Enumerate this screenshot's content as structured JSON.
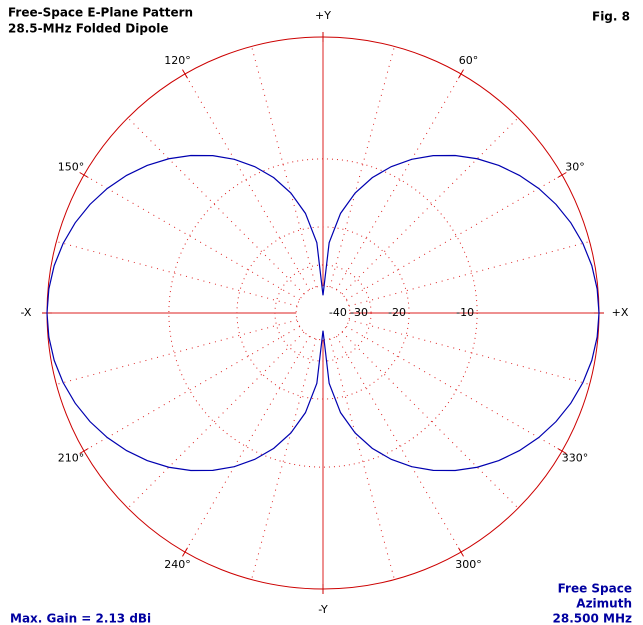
{
  "chart_data": {
    "type": "polar",
    "title": "Free-Space E-Plane Pattern",
    "subtitle": "28.5-MHz Folded Dipole",
    "figure_label": "Fig. 8",
    "footer_right": [
      "Free Space",
      "Azimuth",
      "28.500 MHz"
    ],
    "max_gain": {
      "value": 2.13,
      "label": "Max. Gain = 2.13 dBi"
    },
    "scale": "arrl-log",
    "rticks": [
      -10,
      -20,
      -30,
      -40
    ],
    "angle_ticks": [
      {
        "value": 0,
        "label": "+X"
      },
      {
        "value": 30,
        "label": "30°"
      },
      {
        "value": 60,
        "label": "60°"
      },
      {
        "value": 90,
        "label": "+Y"
      },
      {
        "value": 120,
        "label": "120°"
      },
      {
        "value": 150,
        "label": "150°"
      },
      {
        "value": 180,
        "label": "-X"
      },
      {
        "value": 210,
        "label": "210°"
      },
      {
        "value": 240,
        "label": "240°"
      },
      {
        "value": 270,
        "label": "-Y"
      },
      {
        "value": 300,
        "label": "300°"
      },
      {
        "value": 330,
        "label": "330°"
      }
    ],
    "ring_color": "#cc0000",
    "grid_color": "#dd2222",
    "x": [
      0,
      5,
      10,
      15,
      20,
      25,
      30,
      35,
      40,
      45,
      50,
      55,
      60,
      65,
      70,
      75,
      80,
      85,
      90,
      95,
      100,
      105,
      110,
      115,
      120,
      125,
      130,
      135,
      140,
      145,
      150,
      155,
      160,
      165,
      170,
      175,
      180,
      185,
      190,
      195,
      200,
      205,
      210,
      215,
      220,
      225,
      230,
      235,
      240,
      245,
      250,
      255,
      260,
      265,
      270,
      275,
      280,
      285,
      290,
      295,
      300,
      305,
      310,
      315,
      320,
      325,
      330,
      335,
      340,
      345,
      350,
      355
    ],
    "series": [
      {
        "color": "#0000b0",
        "values": [
          2.13,
          2.08,
          1.94,
          1.69,
          1.35,
          0.91,
          0.37,
          -0.28,
          -1.03,
          -1.91,
          -2.92,
          -4.09,
          -5.45,
          -7.07,
          -9.03,
          -11.58,
          -15.09,
          -21.26,
          -45,
          -21.26,
          -15.09,
          -11.58,
          -9.03,
          -7.07,
          -5.45,
          -4.09,
          -2.92,
          -1.91,
          -1.03,
          -0.28,
          0.37,
          0.91,
          1.35,
          1.69,
          1.94,
          2.08,
          2.13,
          2.08,
          1.94,
          1.69,
          1.35,
          0.91,
          0.37,
          -0.28,
          -1.03,
          -1.91,
          -2.92,
          -4.09,
          -5.45,
          -7.07,
          -9.03,
          -11.58,
          -15.09,
          -21.26,
          -45,
          -21.26,
          -15.09,
          -11.58,
          -9.03,
          -7.07,
          -5.45,
          -4.09,
          -2.92,
          -1.91,
          -1.03,
          -0.28,
          0.37,
          0.91,
          1.35,
          1.69,
          1.94,
          2.08
        ]
      }
    ]
  }
}
